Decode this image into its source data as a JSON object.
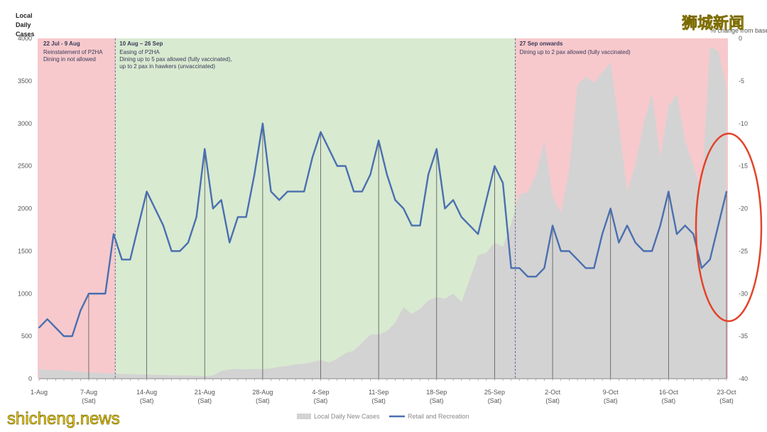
{
  "chart_data": {
    "type": "line",
    "title": "",
    "ylabel": "Local Daily Cases",
    "ylabel_lines": [
      "Local",
      "Daily",
      "Cases"
    ],
    "ylabel_right": "% change from baseline",
    "ylim": [
      0,
      4000
    ],
    "ylim_right": [
      -40,
      0
    ],
    "yticks": [
      0,
      500,
      1000,
      1500,
      2000,
      2500,
      3000,
      3500,
      4000
    ],
    "yticks_right": [
      0,
      -5,
      -10,
      -15,
      -20,
      -25,
      -30,
      -35,
      -40
    ],
    "x_dates": [
      "1-Aug",
      "2-Aug",
      "3-Aug",
      "4-Aug",
      "5-Aug",
      "6-Aug",
      "7-Aug",
      "8-Aug",
      "9-Aug",
      "10-Aug",
      "11-Aug",
      "12-Aug",
      "13-Aug",
      "14-Aug",
      "15-Aug",
      "16-Aug",
      "17-Aug",
      "18-Aug",
      "19-Aug",
      "20-Aug",
      "21-Aug",
      "22-Aug",
      "23-Aug",
      "24-Aug",
      "25-Aug",
      "26-Aug",
      "27-Aug",
      "28-Aug",
      "29-Aug",
      "30-Aug",
      "31-Aug",
      "1-Sep",
      "2-Sep",
      "3-Sep",
      "4-Sep",
      "5-Sep",
      "6-Sep",
      "7-Sep",
      "8-Sep",
      "9-Sep",
      "10-Sep",
      "11-Sep",
      "12-Sep",
      "13-Sep",
      "14-Sep",
      "15-Sep",
      "16-Sep",
      "17-Sep",
      "18-Sep",
      "19-Sep",
      "20-Sep",
      "21-Sep",
      "22-Sep",
      "23-Sep",
      "24-Sep",
      "25-Sep",
      "26-Sep",
      "27-Sep",
      "28-Sep",
      "29-Sep",
      "30-Sep",
      "1-Oct",
      "2-Oct",
      "3-Oct",
      "4-Oct",
      "5-Oct",
      "6-Oct",
      "7-Oct",
      "8-Oct",
      "9-Oct",
      "10-Oct",
      "11-Oct",
      "12-Oct",
      "13-Oct",
      "14-Oct",
      "15-Oct",
      "16-Oct",
      "17-Oct",
      "18-Oct",
      "19-Oct",
      "20-Oct",
      "21-Oct",
      "22-Oct",
      "23-Oct"
    ],
    "x_tick_labels": [
      {
        "index": 0,
        "label": "1-Aug",
        "sub": ""
      },
      {
        "index": 6,
        "label": "7-Aug",
        "sub": "(Sat)"
      },
      {
        "index": 13,
        "label": "14-Aug",
        "sub": "(Sat)"
      },
      {
        "index": 20,
        "label": "21-Aug",
        "sub": "(Sat)"
      },
      {
        "index": 27,
        "label": "28-Aug",
        "sub": "(Sat)"
      },
      {
        "index": 34,
        "label": "4-Sep",
        "sub": "(Sat)"
      },
      {
        "index": 41,
        "label": "11-Sep",
        "sub": "(Sat)"
      },
      {
        "index": 48,
        "label": "18-Sep",
        "sub": "(Sat)"
      },
      {
        "index": 55,
        "label": "25-Sep",
        "sub": "(Sat)"
      },
      {
        "index": 62,
        "label": "2-Oct",
        "sub": "(Sat)"
      },
      {
        "index": 69,
        "label": "9-Oct",
        "sub": "(Sat)"
      },
      {
        "index": 76,
        "label": "16-Oct",
        "sub": "(Sat)"
      },
      {
        "index": 83,
        "label": "23-Oct",
        "sub": "(Sat)"
      }
    ],
    "series": [
      {
        "name": "Local Daily New Cases",
        "kind": "area",
        "axis": "left",
        "color": "#d3d3d3",
        "values": [
          120,
          100,
          100,
          95,
          90,
          80,
          75,
          70,
          65,
          60,
          55,
          55,
          50,
          50,
          45,
          45,
          40,
          40,
          38,
          35,
          30,
          40,
          90,
          110,
          115,
          110,
          115,
          115,
          120,
          140,
          150,
          170,
          175,
          195,
          220,
          190,
          235,
          300,
          330,
          420,
          520,
          520,
          560,
          660,
          840,
          760,
          820,
          920,
          960,
          940,
          1000,
          900,
          1170,
          1450,
          1480,
          1600,
          1550,
          1820,
          2170,
          2190,
          2400,
          2800,
          2150,
          1950,
          2450,
          3450,
          3550,
          3480,
          3600,
          3720,
          3000,
          2200,
          2520,
          3000,
          3350,
          2600,
          3200,
          3350,
          2800,
          2500,
          2200,
          3900,
          3850,
          3420
        ]
      },
      {
        "name": "Retail and Recreation",
        "kind": "line",
        "axis": "right",
        "color": "#4a6fb0",
        "values": [
          -34,
          -33,
          -34,
          -35,
          -35,
          -32,
          -30,
          -30,
          -30,
          -23,
          -26,
          -26,
          -22,
          -18,
          -20,
          -22,
          -25,
          -25,
          -24,
          -21,
          -13,
          -20,
          -19,
          -24,
          -21,
          -21,
          -16,
          -10,
          -18,
          -19,
          -18,
          -18,
          -18,
          -14,
          -11,
          -13,
          -15,
          -15,
          -18,
          -18,
          -16,
          -12,
          -16,
          -19,
          -20,
          -22,
          -22,
          -16,
          -13,
          -20,
          -19,
          -21,
          -22,
          -23,
          -19,
          -15,
          -17,
          -27,
          -27,
          -28,
          -28,
          -27,
          -22,
          -25,
          -25,
          -26,
          -27,
          -27,
          -23,
          -20,
          -24,
          -22,
          -24,
          -25,
          -25,
          -22,
          -18,
          -23,
          -22,
          -23,
          -27,
          -26,
          -22,
          -18
        ]
      }
    ],
    "phases": [
      {
        "title": "22 Jul - 9 Aug",
        "lines": [
          "Reinstatement of P2HA",
          "Dining in not allowed"
        ],
        "start": -0.5,
        "end": 9.2,
        "color": "#f7c9cc"
      },
      {
        "title": "10 Aug – 26 Sep",
        "lines": [
          "Easing of P2HA",
          "Dining up to 5 pax allowed (fully vaccinated),",
          "up to 2 pax in hawkers (unvaccinated)"
        ],
        "start": 9.2,
        "end": 57.5,
        "color": "#d8ead0"
      },
      {
        "title": "27 Sep onwards",
        "lines": [
          "Dining up to 2 pax allowed (fully vaccinated)"
        ],
        "start": 57.5,
        "end": 84.0,
        "color": "#f7c9cc"
      }
    ],
    "annotation": {
      "shape": "ellipse",
      "color": "#e3432a",
      "target": "23-Oct"
    },
    "legend": [
      "Local Daily New Cases",
      "Retail and Recreation"
    ],
    "legend_position": "bottom-center"
  },
  "watermarks": {
    "top_right": "狮城新闻",
    "bottom_left": "shicheng.news"
  }
}
